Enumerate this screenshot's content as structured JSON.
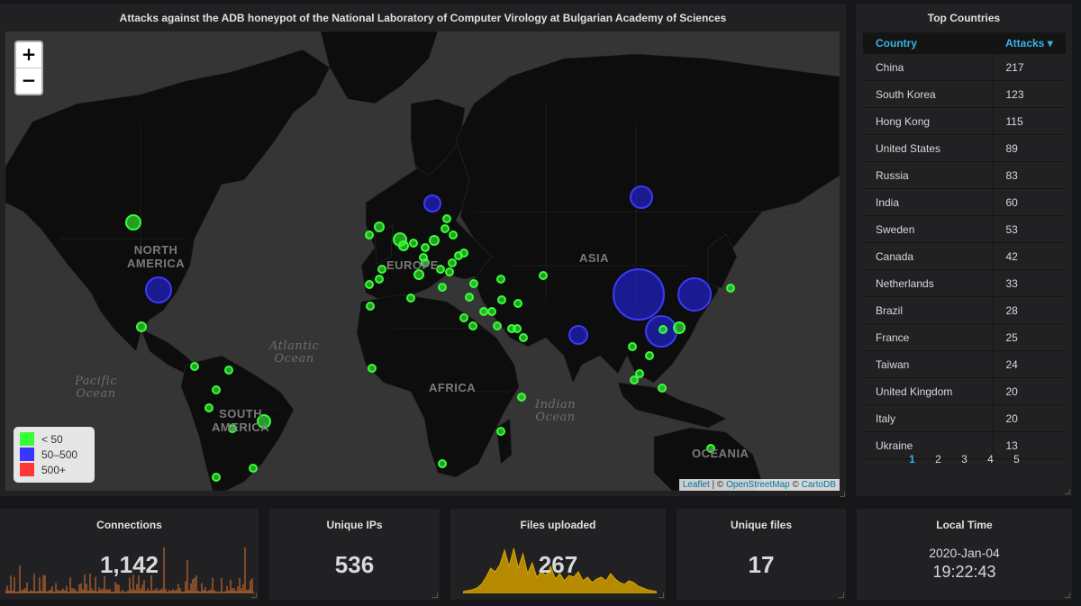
{
  "map_panel": {
    "title": "Attacks against the ADB honeypot of the National Laboratory of Computer Virology at Bulgarian Academy of Sciences",
    "zoom_in": "+",
    "zoom_out": "−",
    "labels": {
      "north_america": "NORTH\nAMERICA",
      "south_america": "SOUTH\nAMERICA",
      "europe": "EUROPE",
      "asia": "ASIA",
      "africa": "AFRICA",
      "oceania": "OCEANIA",
      "atlantic": "Atlantic\nOcean",
      "pacific": "Pacific\nOcean",
      "indian": "Indian\nOcean"
    },
    "legend": [
      {
        "label": "< 50",
        "color": "#37ff37"
      },
      {
        "label": "50–500",
        "color": "#3737ff"
      },
      {
        "label": "500+",
        "color": "#ff3737"
      }
    ],
    "attribution": {
      "leaflet": "Leaflet",
      "sep1": " | © ",
      "osm": "OpenStreetMap",
      "sep2": " © ",
      "carto": "CartoDB"
    }
  },
  "top_countries": {
    "title": "Top Countries",
    "col_country": "Country",
    "col_attacks": "Attacks ▾",
    "rows": [
      {
        "country": "China",
        "attacks": "217"
      },
      {
        "country": "South Korea",
        "attacks": "123"
      },
      {
        "country": "Hong Kong",
        "attacks": "115"
      },
      {
        "country": "United States",
        "attacks": "89"
      },
      {
        "country": "Russia",
        "attacks": "83"
      },
      {
        "country": "India",
        "attacks": "60"
      },
      {
        "country": "Sweden",
        "attacks": "53"
      },
      {
        "country": "Canada",
        "attacks": "42"
      },
      {
        "country": "Netherlands",
        "attacks": "33"
      },
      {
        "country": "Brazil",
        "attacks": "28"
      },
      {
        "country": "France",
        "attacks": "25"
      },
      {
        "country": "Taiwan",
        "attacks": "24"
      },
      {
        "country": "United Kingdom",
        "attacks": "20"
      },
      {
        "country": "Italy",
        "attacks": "20"
      },
      {
        "country": "Ukraine",
        "attacks": "13"
      }
    ],
    "pages": [
      "1",
      "2",
      "3",
      "4",
      "5"
    ],
    "active_page": "1"
  },
  "stats": {
    "connections": {
      "title": "Connections",
      "value": "1,142"
    },
    "unique_ips": {
      "title": "Unique IPs",
      "value": "536"
    },
    "files_uploaded": {
      "title": "Files uploaded",
      "value": "267"
    },
    "unique_files": {
      "title": "Unique files",
      "value": "17"
    },
    "local_time": {
      "title": "Local Time",
      "date": "2020-Jan-04",
      "time": "19:22:43"
    }
  },
  "colors": {
    "sparkline_orange": "#e0752d",
    "sparkline_gold": "#b58a00",
    "accent_blue": "#33b5e5"
  }
}
